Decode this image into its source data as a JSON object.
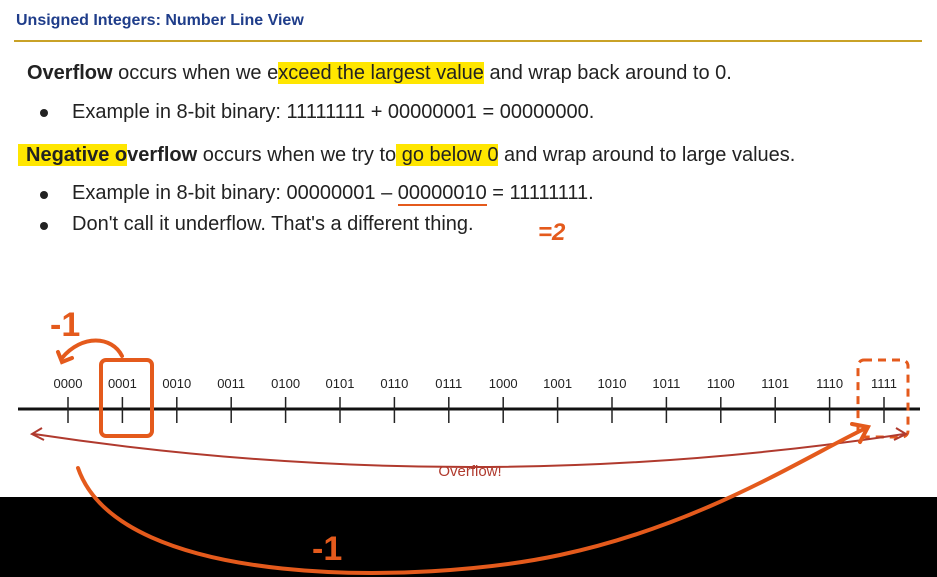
{
  "title": "Unsigned Integers: Number Line View",
  "para1": {
    "bold": "Overflow",
    "pre": " occurs when we e",
    "highlight": "xceed the largest value",
    "post": " and wrap back around to 0."
  },
  "bullet1": "Example in 8-bit binary: 11111111 + 00000001 = 00000000.",
  "para2": {
    "bold": "Negative o",
    "bold_rest": "verflow",
    "pre": " occurs when we try to",
    "highlight": " go below 0",
    "post": " and wrap around to large values."
  },
  "bullet2": {
    "pre": "Example in 8-bit binary: 00000001 – ",
    "underlined": "00000010",
    "post": " = 11111111."
  },
  "bullet3": "Don't call it underflow. That's a different thing.",
  "annotations": {
    "equals_two": "=2",
    "minus_one_top": "-1",
    "minus_one_bottom": "-1"
  },
  "number_line": {
    "labels": [
      "0000",
      "0001",
      "0010",
      "0011",
      "0100",
      "0101",
      "0110",
      "0111",
      "1000",
      "1001",
      "1010",
      "1011",
      "1100",
      "1101",
      "1110",
      "1111"
    ],
    "overflow_label": "Overflow!"
  },
  "colors": {
    "title": "#1f3d8a",
    "rule": "#c9a227",
    "highlight": "#ffe600",
    "annotation": "#e45a1c",
    "arc": "#b03a2e",
    "overflow_text": "#b03a2e"
  }
}
